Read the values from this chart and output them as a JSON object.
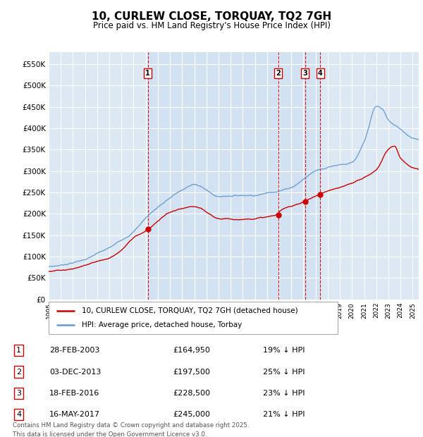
{
  "title": "10, CURLEW CLOSE, TORQUAY, TQ2 7GH",
  "subtitle": "Price paid vs. HM Land Registry's House Price Index (HPI)",
  "ylim": [
    0,
    577000
  ],
  "yticks": [
    0,
    50000,
    100000,
    150000,
    200000,
    250000,
    300000,
    350000,
    400000,
    450000,
    500000,
    550000
  ],
  "ytick_labels": [
    "£0",
    "£50K",
    "£100K",
    "£150K",
    "£200K",
    "£250K",
    "£300K",
    "£350K",
    "£400K",
    "£450K",
    "£500K",
    "£550K"
  ],
  "xlim_start": 1995.0,
  "xlim_end": 2025.5,
  "plot_bg_color": "#dce9f5",
  "grid_color": "#ffffff",
  "transactions": [
    {
      "label": "1",
      "date": "28-FEB-2003",
      "price": 164950,
      "price_str": "£164,950",
      "hpi_diff": "19% ↓ HPI",
      "year": 2003.167
    },
    {
      "label": "2",
      "date": "03-DEC-2013",
      "price": 197500,
      "price_str": "£197,500",
      "hpi_diff": "25% ↓ HPI",
      "year": 2013.917
    },
    {
      "label": "3",
      "date": "18-FEB-2016",
      "price": 228500,
      "price_str": "£228,500",
      "hpi_diff": "23% ↓ HPI",
      "year": 2016.125
    },
    {
      "label": "4",
      "date": "16-MAY-2017",
      "price": 245000,
      "price_str": "£245,000",
      "hpi_diff": "21% ↓ HPI",
      "year": 2017.375
    }
  ],
  "legend_property": "10, CURLEW CLOSE, TORQUAY, TQ2 7GH (detached house)",
  "legend_hpi": "HPI: Average price, detached house, Torbay",
  "footer_line1": "Contains HM Land Registry data © Crown copyright and database right 2025.",
  "footer_line2": "This data is licensed under the Open Government Licence v3.0.",
  "property_color": "#cc0000",
  "hpi_color": "#6699cc",
  "vline_color": "#cc0000",
  "box_color": "#cc0000",
  "shade_color": "#ccddf0"
}
